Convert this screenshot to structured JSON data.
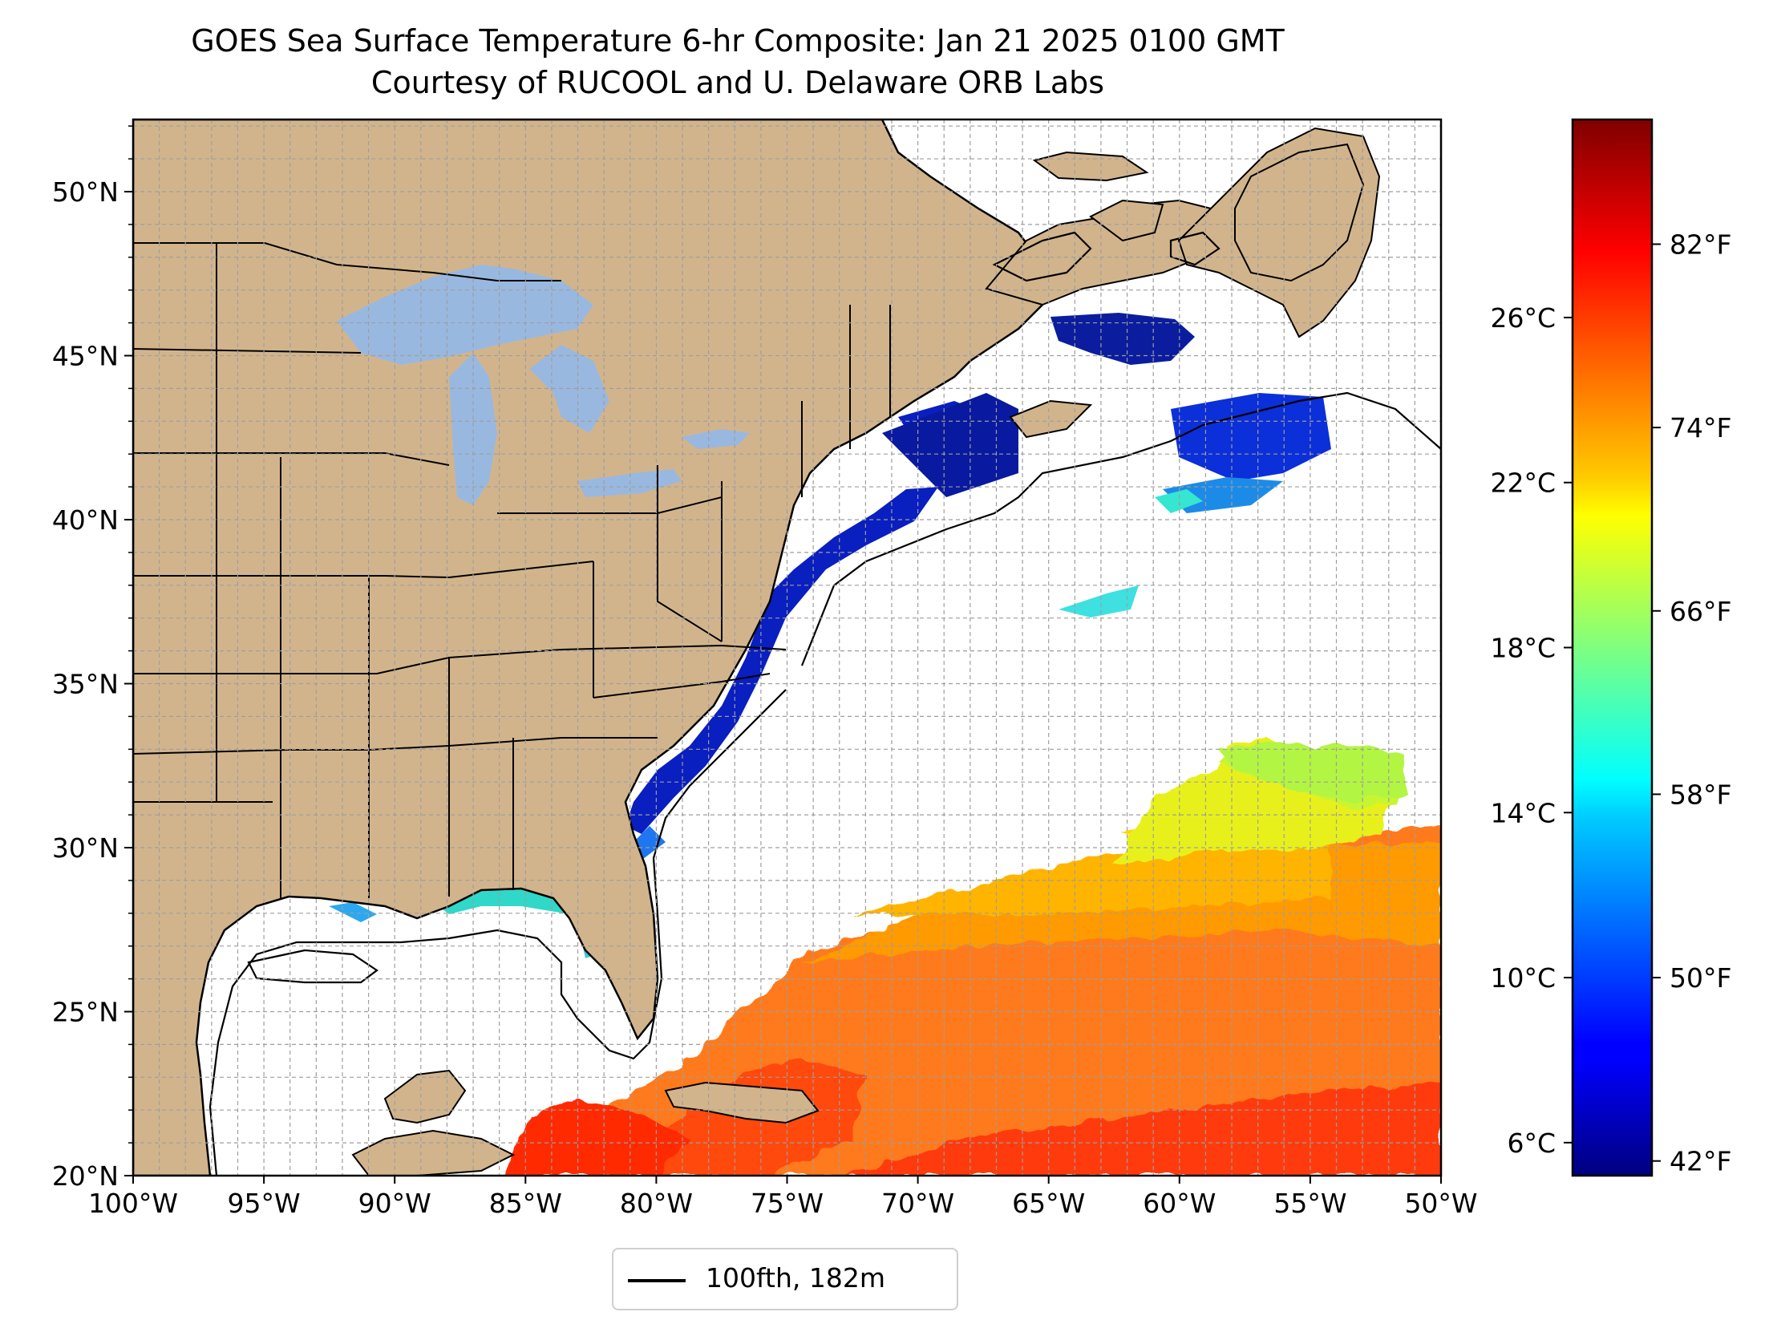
{
  "title": {
    "line1": "GOES Sea Surface Temperature 6-hr Composite: Jan 21 2025 0100 GMT",
    "line2": "Courtesy of RUCOOL and U. Delaware ORB Labs"
  },
  "map": {
    "lon_range": [
      -100,
      -50
    ],
    "lat_range": [
      20,
      52.2
    ],
    "x_ticks": [
      {
        "lon": -100,
        "label": "100°W"
      },
      {
        "lon": -95,
        "label": "95°W"
      },
      {
        "lon": -90,
        "label": "90°W"
      },
      {
        "lon": -85,
        "label": "85°W"
      },
      {
        "lon": -80,
        "label": "80°W"
      },
      {
        "lon": -75,
        "label": "75°W"
      },
      {
        "lon": -70,
        "label": "70°W"
      },
      {
        "lon": -65,
        "label": "65°W"
      },
      {
        "lon": -60,
        "label": "60°W"
      },
      {
        "lon": -55,
        "label": "55°W"
      },
      {
        "lon": -50,
        "label": "50°W"
      }
    ],
    "y_ticks": [
      {
        "lat": 20,
        "label": "20°N"
      },
      {
        "lat": 25,
        "label": "25°N"
      },
      {
        "lat": 30,
        "label": "30°N"
      },
      {
        "lat": 35,
        "label": "35°N"
      },
      {
        "lat": 40,
        "label": "40°N"
      },
      {
        "lat": 45,
        "label": "45°N"
      },
      {
        "lat": 50,
        "label": "50°N"
      }
    ],
    "grid": "dashed, every 1°",
    "land_color": "#d2b48c",
    "lake_color": "#99b8e0",
    "ocean_color": "#ffffff"
  },
  "colorbar": {
    "colormap": "jet",
    "celsius_range": [
      5.2,
      30.8
    ],
    "celsius_ticks": [
      {
        "value": 6,
        "label": "6°C"
      },
      {
        "value": 10,
        "label": "10°C"
      },
      {
        "value": 14,
        "label": "14°C"
      },
      {
        "value": 18,
        "label": "18°C"
      },
      {
        "value": 22,
        "label": "22°C"
      },
      {
        "value": 26,
        "label": "26°C"
      }
    ],
    "fahrenheit_ticks": [
      {
        "value": 42,
        "label": "42°F"
      },
      {
        "value": 50,
        "label": "50°F"
      },
      {
        "value": 58,
        "label": "58°F"
      },
      {
        "value": 66,
        "label": "66°F"
      },
      {
        "value": 74,
        "label": "74°F"
      },
      {
        "value": 82,
        "label": "82°F"
      }
    ]
  },
  "legend": {
    "label": "100fth, 182m",
    "line_color": "#000000",
    "placement": "bottom-center"
  }
}
